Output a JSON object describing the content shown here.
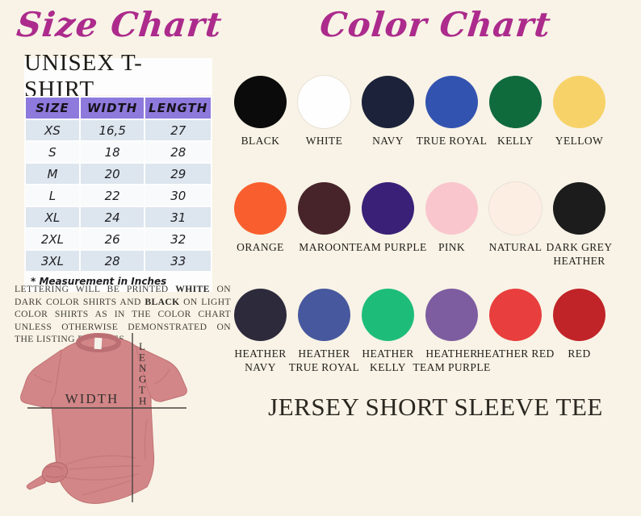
{
  "page": {
    "background": "#f8f3e6",
    "accent_magenta": "#ac2b8c",
    "table_header_purple": "#8e79dc"
  },
  "size_chart": {
    "title": "Size Chart",
    "subtitle": "UNISEX T-SHIRT",
    "table": {
      "headers": [
        "SIZE",
        "WIDTH",
        "LENGTH"
      ],
      "rows": [
        [
          "XS",
          "16,5",
          "27"
        ],
        [
          "S",
          "18",
          "28"
        ],
        [
          "M",
          "20",
          "29"
        ],
        [
          "L",
          "22",
          "30"
        ],
        [
          "XL",
          "24",
          "31"
        ],
        [
          "2XL",
          "26",
          "32"
        ],
        [
          "3XL",
          "28",
          "33"
        ]
      ],
      "footnote": "* Measurement in Inches"
    },
    "note": {
      "segments": [
        {
          "text": "LETTERING WILL BE PRINTED ",
          "bold": false
        },
        {
          "text": "WHITE",
          "bold": true
        },
        {
          "text": " ON DARK COLOR SHIRTS AND ",
          "bold": false
        },
        {
          "text": "BLACK",
          "bold": true
        },
        {
          "text": " ON LIGHT COLOR SHIRTS AS IN THE COLOR CHART UNLESS OTHERWISE DEMONSTRATED ON THE LISTING PICTURES",
          "bold": false
        }
      ]
    },
    "shirt_labels": {
      "width": "WIDTH",
      "length": "LENGTH"
    },
    "shirt_color": "#d28688"
  },
  "color_chart": {
    "title": "Color Chart",
    "colors": [
      {
        "name": "BLACK",
        "hex": "#0b0b0b"
      },
      {
        "name": "WHITE",
        "hex": "#fefefe"
      },
      {
        "name": "NAVY",
        "hex": "#1c2239"
      },
      {
        "name": "TRUE ROYAL",
        "hex": "#3353b0"
      },
      {
        "name": "KELLY",
        "hex": "#0f6a3c"
      },
      {
        "name": "YELLOW",
        "hex": "#f7d269"
      },
      {
        "name": "ORANGE",
        "hex": "#f95f2e"
      },
      {
        "name": "MAROON",
        "hex": "#47242a"
      },
      {
        "name": "TEAM PURPLE",
        "hex": "#3a2177"
      },
      {
        "name": "PINK",
        "hex": "#f9c6ce"
      },
      {
        "name": "NATURAL",
        "hex": "#fdeee4"
      },
      {
        "name": "DARK GREY HEATHER",
        "hex": "#1c1c1c"
      },
      {
        "name": "HEATHER NAVY",
        "hex": "#2d2a3c"
      },
      {
        "name": "HEATHER TRUE ROYAL",
        "hex": "#47589e"
      },
      {
        "name": "HEATHER KELLY",
        "hex": "#1dbd79"
      },
      {
        "name": "HEATHER TEAM PURPLE",
        "hex": "#7d5da0"
      },
      {
        "name": "HEATHER RED",
        "hex": "#e83e3d"
      },
      {
        "name": "RED",
        "hex": "#c02428"
      }
    ],
    "product": "JERSEY SHORT SLEEVE TEE"
  }
}
